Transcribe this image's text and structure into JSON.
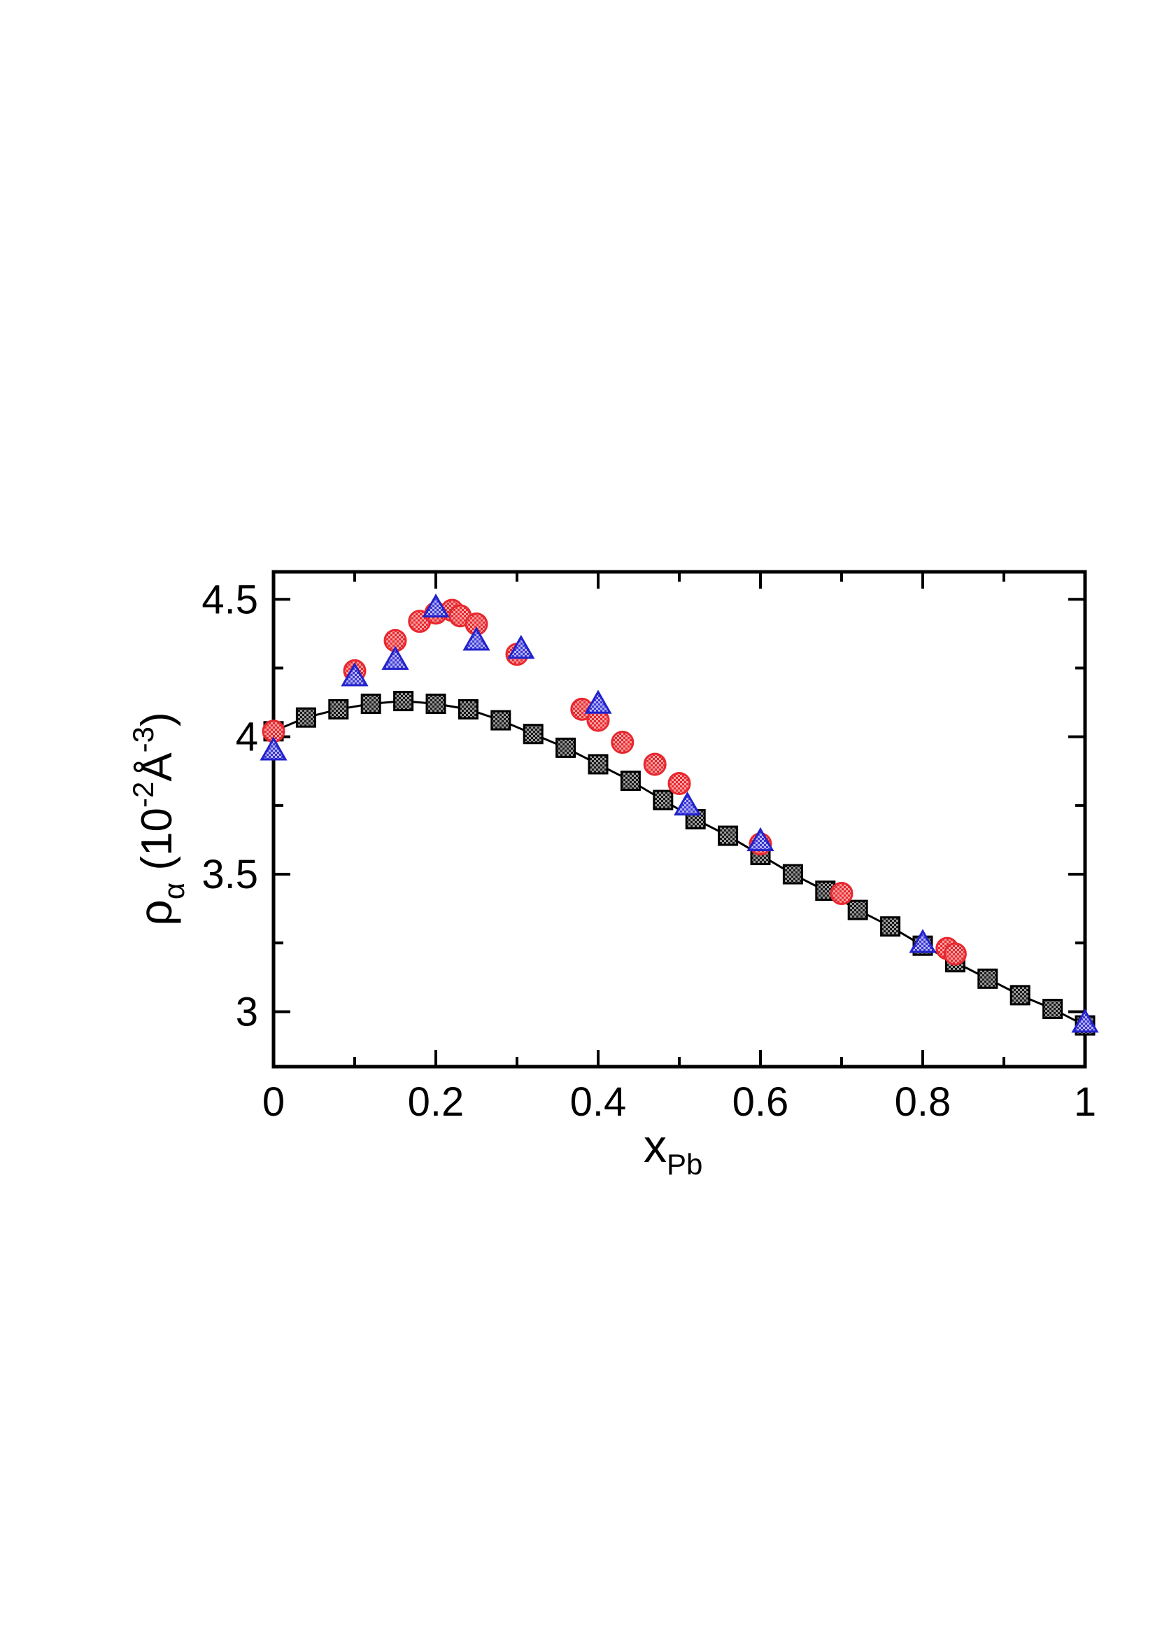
{
  "chart_data": {
    "type": "scatter",
    "xlabel": {
      "main": "x",
      "sub": "Pb"
    },
    "ylabel": {
      "main": "ρ",
      "sub": "α",
      "unit_prefix": "(10",
      "exp1": "-2",
      "unit": "Å",
      "exp2": "-3",
      "unit_suffix": ")"
    },
    "xlim": [
      0,
      1
    ],
    "ylim": [
      2.8,
      4.6
    ],
    "xticks": [
      0,
      0.2,
      0.4,
      0.6,
      0.8,
      1
    ],
    "xtick_labels": [
      "0",
      "0.2",
      "0.4",
      "0.6",
      "0.8",
      "1"
    ],
    "xminor": [
      0.1,
      0.3,
      0.5,
      0.7,
      0.9
    ],
    "yticks": [
      3,
      3.5,
      4,
      4.5
    ],
    "ytick_labels": [
      "3",
      "3.5",
      "4",
      "4.5"
    ],
    "yminor": [
      3.25,
      3.75,
      4.25
    ],
    "grid": false,
    "legend": "none",
    "series": [
      {
        "marker": "square",
        "color": "#555555",
        "line": true,
        "x": [
          0,
          0.04,
          0.08,
          0.12,
          0.16,
          0.2,
          0.24,
          0.28,
          0.32,
          0.36,
          0.4,
          0.44,
          0.48,
          0.52,
          0.56,
          0.6,
          0.64,
          0.68,
          0.72,
          0.76,
          0.8,
          0.84,
          0.88,
          0.92,
          0.96,
          1.0
        ],
        "y": [
          4.02,
          4.07,
          4.1,
          4.12,
          4.13,
          4.12,
          4.1,
          4.06,
          4.01,
          3.96,
          3.9,
          3.84,
          3.77,
          3.7,
          3.64,
          3.57,
          3.5,
          3.44,
          3.37,
          3.31,
          3.24,
          3.18,
          3.12,
          3.06,
          3.01,
          2.95
        ]
      },
      {
        "marker": "circle",
        "color": "#e8282f",
        "line": false,
        "x": [
          0,
          0.1,
          0.15,
          0.18,
          0.2,
          0.22,
          0.23,
          0.25,
          0.3,
          0.38,
          0.4,
          0.43,
          0.47,
          0.5,
          0.6,
          0.7,
          0.83,
          0.84
        ],
        "y": [
          4.02,
          4.24,
          4.35,
          4.42,
          4.45,
          4.46,
          4.44,
          4.41,
          4.3,
          4.1,
          4.06,
          3.98,
          3.9,
          3.83,
          3.61,
          3.43,
          3.23,
          3.21
        ]
      },
      {
        "marker": "triangle",
        "color": "#2d2ad6",
        "line": false,
        "x": [
          0,
          0.1,
          0.15,
          0.2,
          0.25,
          0.305,
          0.4,
          0.51,
          0.6,
          0.8,
          1.0
        ],
        "y": [
          3.95,
          4.22,
          4.28,
          4.47,
          4.35,
          4.32,
          4.12,
          3.75,
          3.62,
          3.25,
          2.96
        ]
      }
    ]
  }
}
